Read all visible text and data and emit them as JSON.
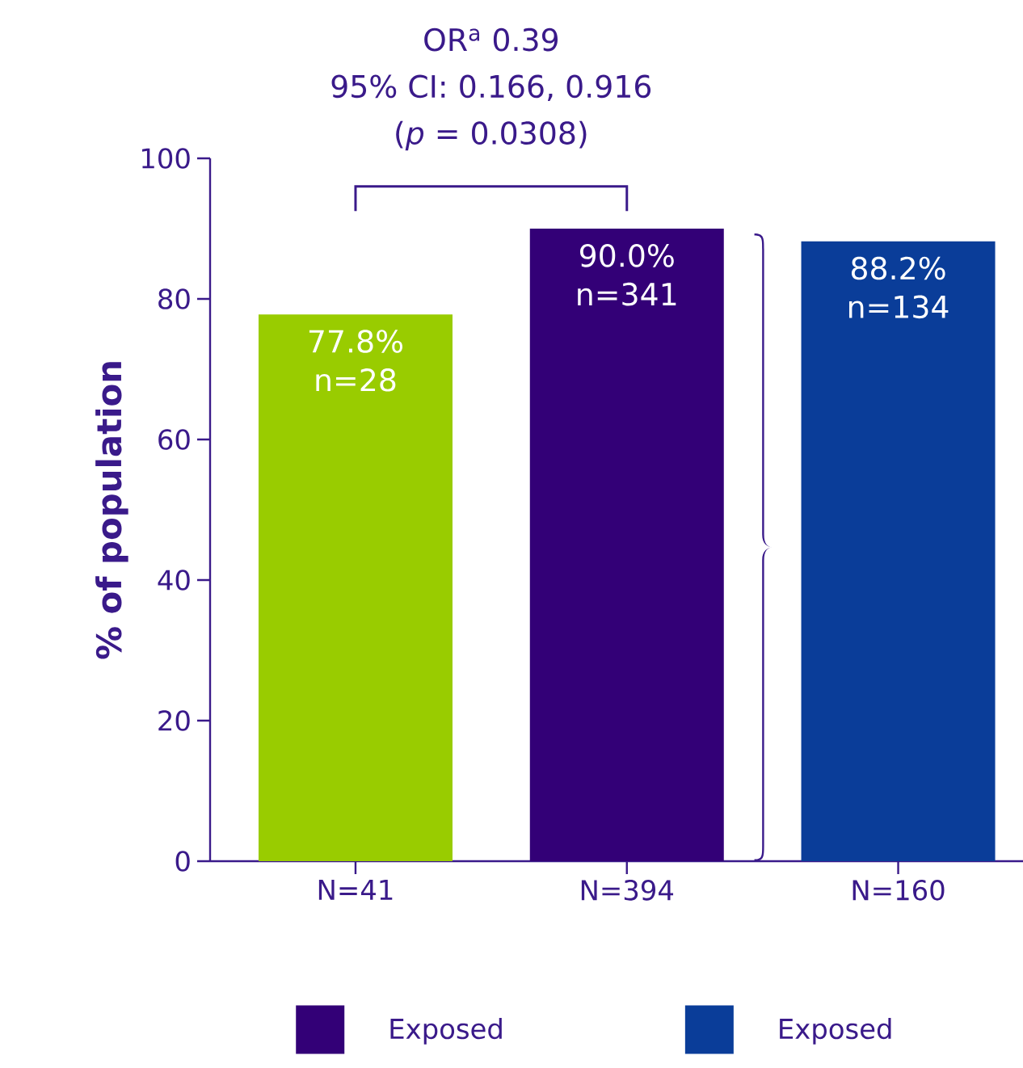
{
  "chart_data": {
    "type": "bar",
    "ylabel": "% of population",
    "categories": [
      "N=41",
      "N=394",
      "N=160"
    ],
    "annotations": [
      "OR$^{a}$ 0.39",
      "95% CI: 0.166, 0.916",
      "(*p* = 0.0308)"
    ],
    "ylim": [
      0,
      100
    ],
    "yticks": [
      0,
      20,
      40,
      60,
      80,
      100
    ],
    "legend": "bottom",
    "series": [
      {
        "color": "#99cc00",
        "values": [
          77.8,
          null,
          null
        ],
        "value_labels": [
          "77.8% n=28",
          null,
          null
        ]
      },
      {
        "name": "Exposed",
        "color": "#330077",
        "values": [
          null,
          90.0,
          null
        ],
        "value_labels": [
          null,
          "90.0% n=341",
          null
        ]
      },
      {
        "name": "Exposed",
        "color": "#0a3d99",
        "values": [
          null,
          null,
          88.2
        ],
        "value_labels": [
          null,
          null,
          "88.2% n=134"
        ]
      }
    ]
  }
}
